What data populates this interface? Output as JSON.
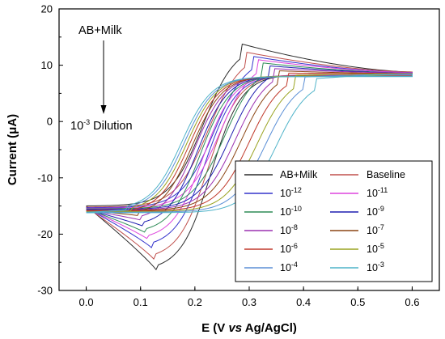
{
  "chart_data": {
    "type": "line",
    "xlabel": "E (V vs Ag/AgCl)",
    "xlabel_parts": {
      "pre": "E (V ",
      "italic": "vs",
      "post": " Ag/AgCl)"
    },
    "ylabel": "Current (μA)",
    "xlim": [
      -0.05,
      0.65
    ],
    "ylim": [
      -30,
      20
    ],
    "x_ticks": [
      0.0,
      0.1,
      0.2,
      0.3,
      0.4,
      0.5,
      0.6
    ],
    "x_tick_labels": [
      "0.0",
      "0.1",
      "0.2",
      "0.3",
      "0.4",
      "0.5",
      "0.6"
    ],
    "y_ticks": [
      -30,
      -20,
      -10,
      0,
      10,
      20
    ],
    "y_tick_labels": [
      "-30",
      "-20",
      "-10",
      "0",
      "10",
      "20"
    ],
    "grid": false,
    "legend_position": "bottom-right",
    "annotations": {
      "top_label": "AB+Milk",
      "bottom_label_base": "10",
      "bottom_label_exp": "-3",
      "bottom_label_rest": " Dilution"
    },
    "series": [
      {
        "name": "AB+Milk",
        "label_base": "AB+Milk",
        "label_exp": "",
        "color": "#2b2b2b",
        "anodic_peak": [
          0.285,
          13.8
        ],
        "cathodic_peak": [
          0.13,
          -26.5
        ],
        "start_current": -15.0,
        "end_current": 8.8
      },
      {
        "name": "Baseline",
        "label_base": "Baseline",
        "label_exp": "",
        "color": "#c0504d",
        "anodic_peak": [
          0.295,
          12.3
        ],
        "cathodic_peak": [
          0.125,
          -24.5
        ],
        "start_current": -15.2,
        "end_current": 8.8
      },
      {
        "name": "10-12",
        "label_base": "10",
        "label_exp": "-12",
        "color": "#3333cc",
        "anodic_peak": [
          0.305,
          11.6
        ],
        "cathodic_peak": [
          0.12,
          -22.4
        ],
        "start_current": -15.3,
        "end_current": 8.7
      },
      {
        "name": "10-11",
        "label_base": "10",
        "label_exp": "-11",
        "color": "#dd44dd",
        "anodic_peak": [
          0.315,
          11.0
        ],
        "cathodic_peak": [
          0.115,
          -21.0
        ],
        "start_current": -15.4,
        "end_current": 8.7
      },
      {
        "name": "10-10",
        "label_base": "10",
        "label_exp": "-10",
        "color": "#2e8b57",
        "anodic_peak": [
          0.325,
          10.4
        ],
        "cathodic_peak": [
          0.11,
          -19.8
        ],
        "start_current": -15.5,
        "end_current": 8.6
      },
      {
        "name": "10-9",
        "label_base": "10",
        "label_exp": "-9",
        "color": "#1f1fb0",
        "anodic_peak": [
          0.335,
          9.9
        ],
        "cathodic_peak": [
          0.105,
          -18.6
        ],
        "start_current": -15.6,
        "end_current": 8.6
      },
      {
        "name": "10-8",
        "label_base": "10",
        "label_exp": "-8",
        "color": "#9b30b0",
        "anodic_peak": [
          0.345,
          9.4
        ],
        "cathodic_peak": [
          0.1,
          -17.5
        ],
        "start_current": -15.7,
        "end_current": 8.6
      },
      {
        "name": "10-7",
        "label_base": "10",
        "label_exp": "-7",
        "color": "#8b4513",
        "anodic_peak": [
          0.355,
          9.0
        ],
        "cathodic_peak": [
          0.095,
          -16.7
        ],
        "start_current": -15.8,
        "end_current": 8.5
      },
      {
        "name": "10-6",
        "label_base": "10",
        "label_exp": "-6",
        "color": "#c0392b",
        "anodic_peak": [
          0.37,
          8.6
        ],
        "cathodic_peak": [
          0.09,
          -16.2
        ],
        "start_current": -15.9,
        "end_current": 8.5
      },
      {
        "name": "10-5",
        "label_base": "10",
        "label_exp": "-5",
        "color": "#9aa320",
        "anodic_peak": [
          0.385,
          8.2
        ],
        "cathodic_peak": [
          0.085,
          -15.9
        ],
        "start_current": -16.0,
        "end_current": 8.5
      },
      {
        "name": "10-4",
        "label_base": "10",
        "label_exp": "-4",
        "color": "#5b8fd6",
        "anodic_peak": [
          0.4,
          7.9
        ],
        "cathodic_peak": [
          0.08,
          -15.7
        ],
        "start_current": -16.1,
        "end_current": 8.4
      },
      {
        "name": "10-3",
        "label_base": "10",
        "label_exp": "-3",
        "color": "#4fb3c9",
        "anodic_peak": [
          0.42,
          7.6
        ],
        "cathodic_peak": [
          0.075,
          -15.6
        ],
        "start_current": -16.2,
        "end_current": 8.4
      }
    ]
  }
}
